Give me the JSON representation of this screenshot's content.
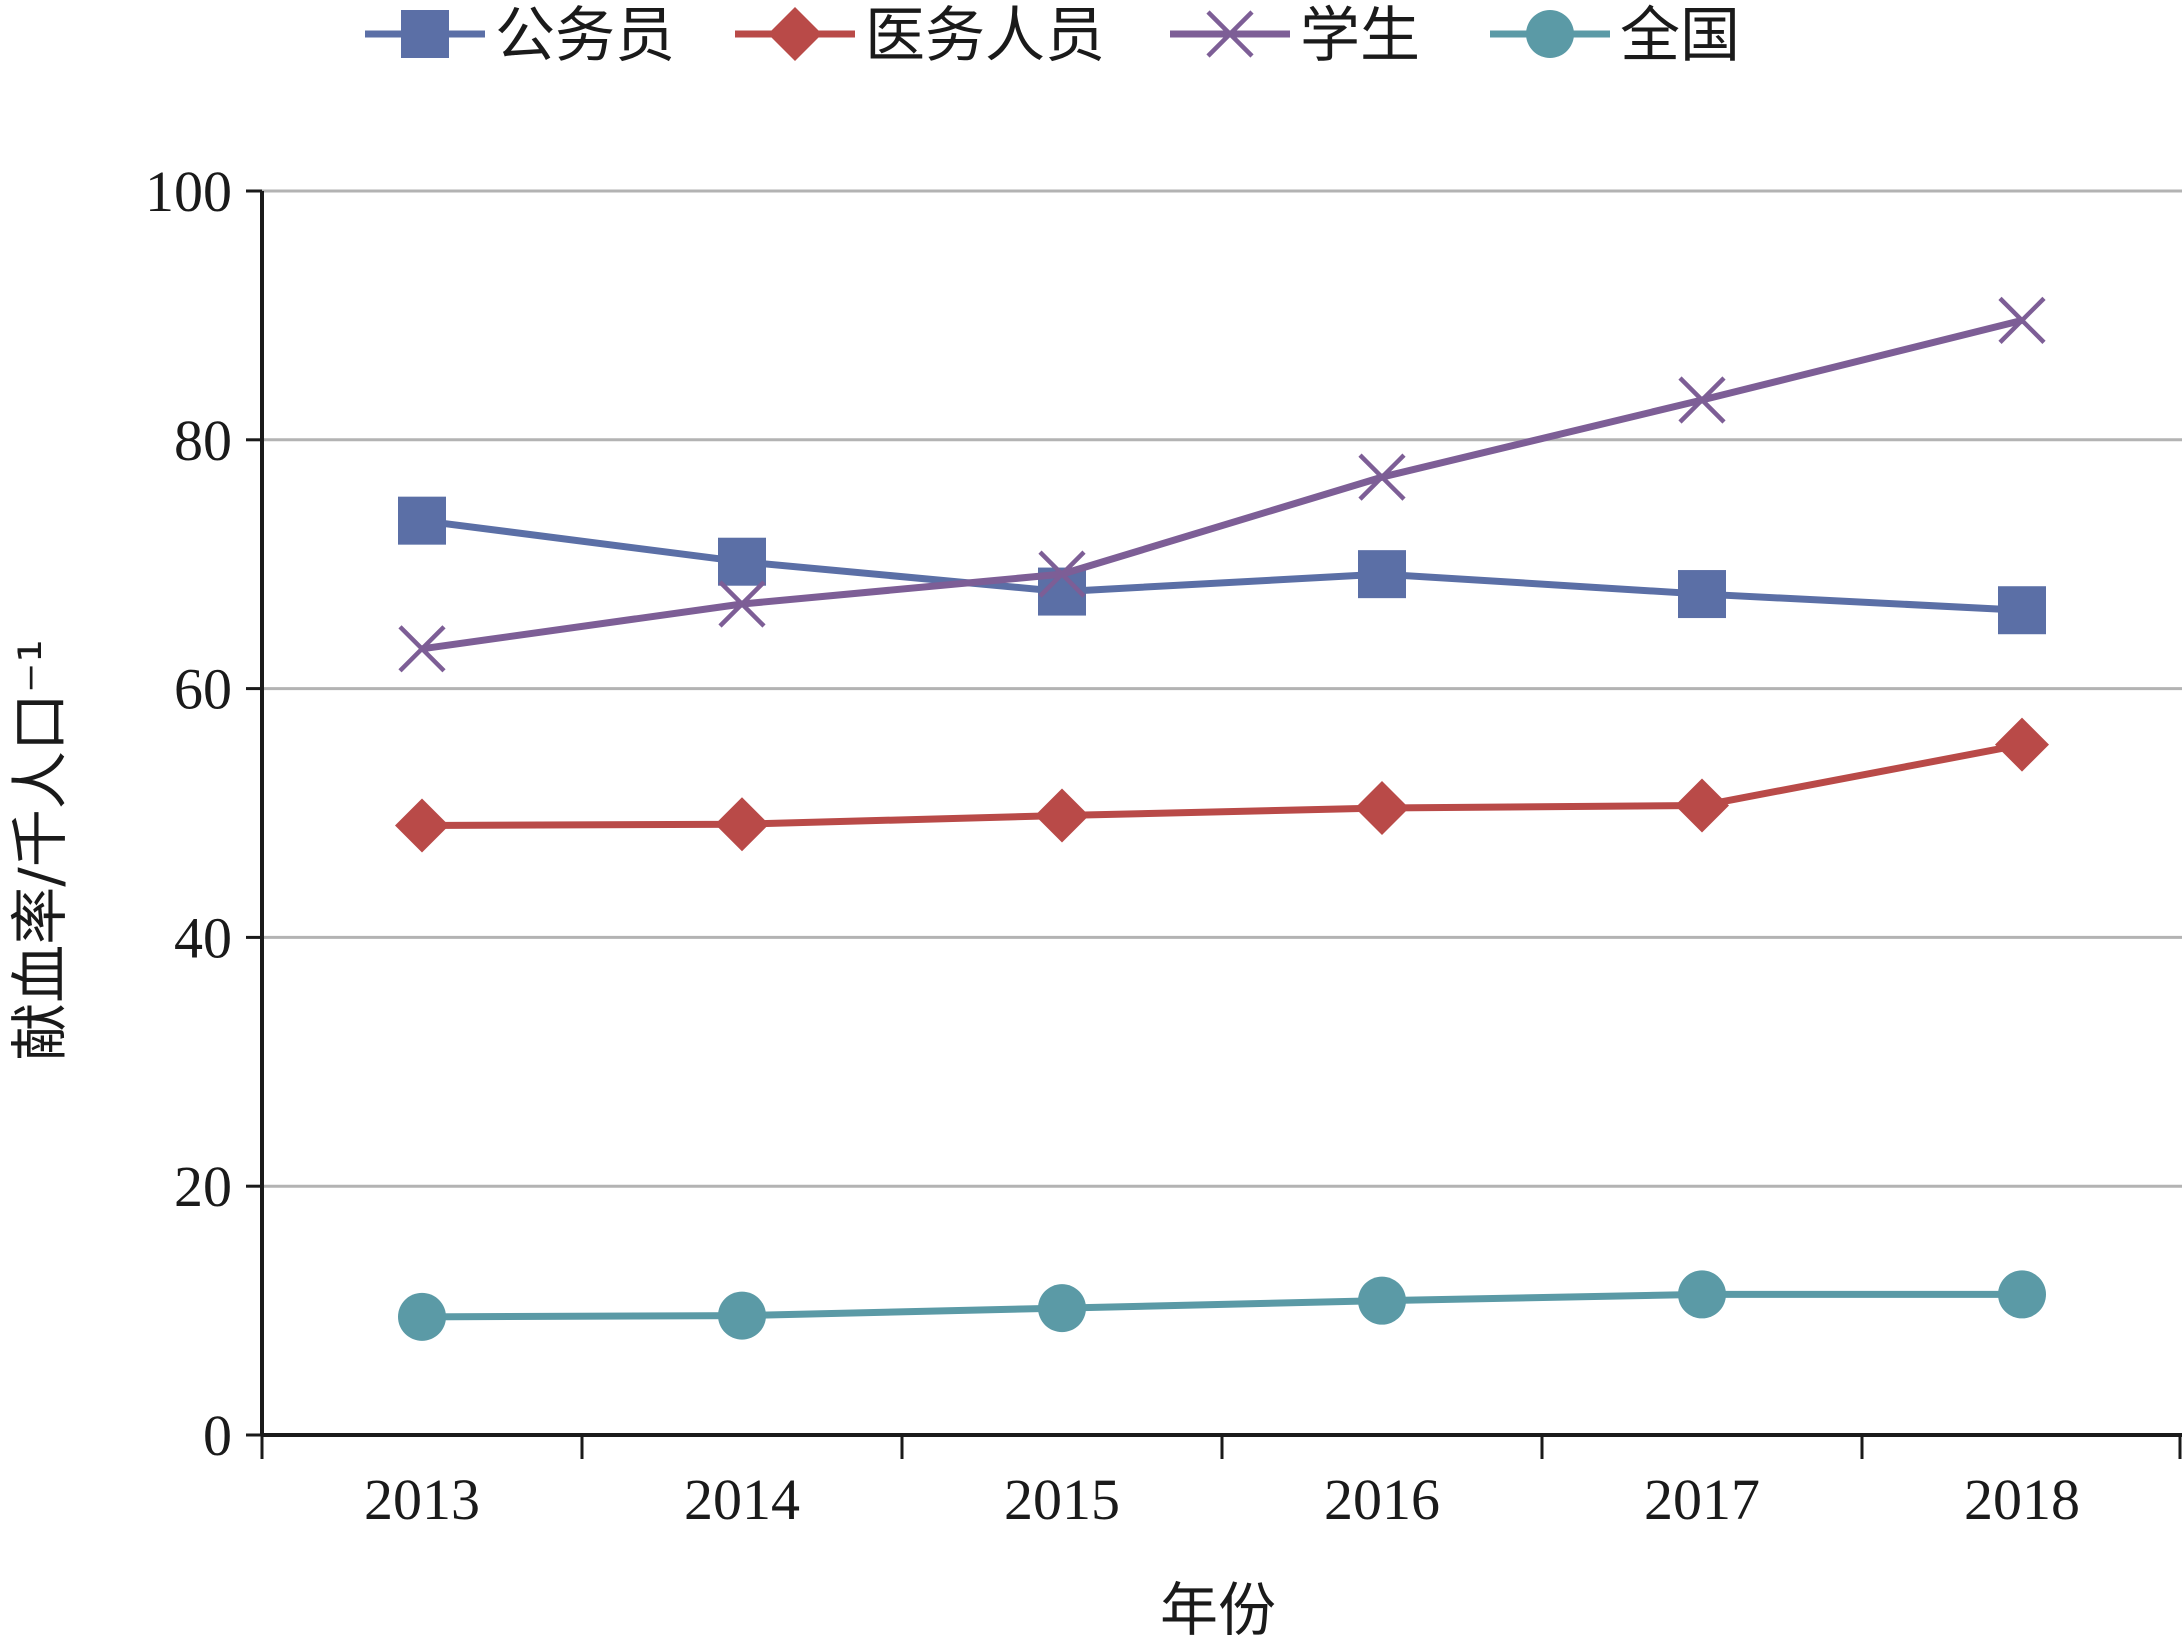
{
  "chart_data": {
    "type": "line",
    "title": "",
    "xlabel": "年份",
    "ylabel": "献血率/千人口⁻¹",
    "categories": [
      "2013",
      "2014",
      "2015",
      "2016",
      "2017",
      "2018"
    ],
    "ylim": [
      0,
      100
    ],
    "yticks": [
      0,
      20,
      40,
      60,
      80,
      100
    ],
    "grid": true,
    "legend_position": "top",
    "series": [
      {
        "name": "公务员",
        "marker": "square",
        "color": "#5b6fa6",
        "values": [
          73.5,
          70.2,
          67.8,
          69.2,
          67.6,
          66.3
        ]
      },
      {
        "name": "医务人员",
        "marker": "diamond",
        "color": "#b94a48",
        "values": [
          49.0,
          49.1,
          49.8,
          50.4,
          50.6,
          55.5
        ]
      },
      {
        "name": "学生",
        "marker": "x",
        "color": "#7d5e96",
        "values": [
          63.2,
          66.8,
          69.2,
          77.0,
          83.2,
          89.6
        ]
      },
      {
        "name": "全国",
        "marker": "circle",
        "color": "#5b9aa6",
        "values": [
          9.5,
          9.6,
          10.2,
          10.8,
          11.3,
          11.3
        ]
      }
    ]
  }
}
